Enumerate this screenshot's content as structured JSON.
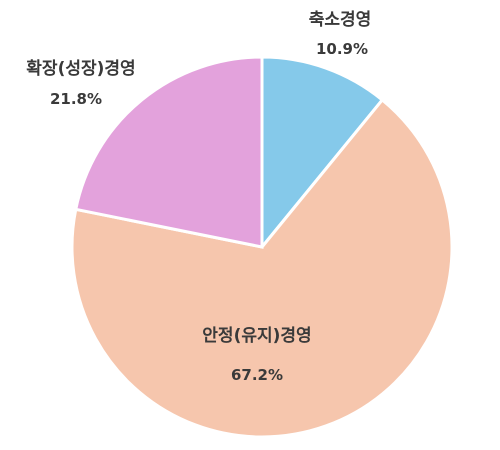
{
  "chart_data": {
    "type": "pie",
    "start_angle_deg": 0,
    "direction": "clockwise",
    "slices": [
      {
        "label": "축소경영",
        "value": 10.9,
        "value_label": "10.9%",
        "color": "#85c9ea"
      },
      {
        "label": "안정(유지)경영",
        "value": 67.2,
        "value_label": "67.2%",
        "color": "#f6c6ad"
      },
      {
        "label": "확장(성장)경영",
        "value": 21.8,
        "value_label": "21.8%",
        "color": "#e3a2dc"
      }
    ],
    "legend": "none"
  }
}
